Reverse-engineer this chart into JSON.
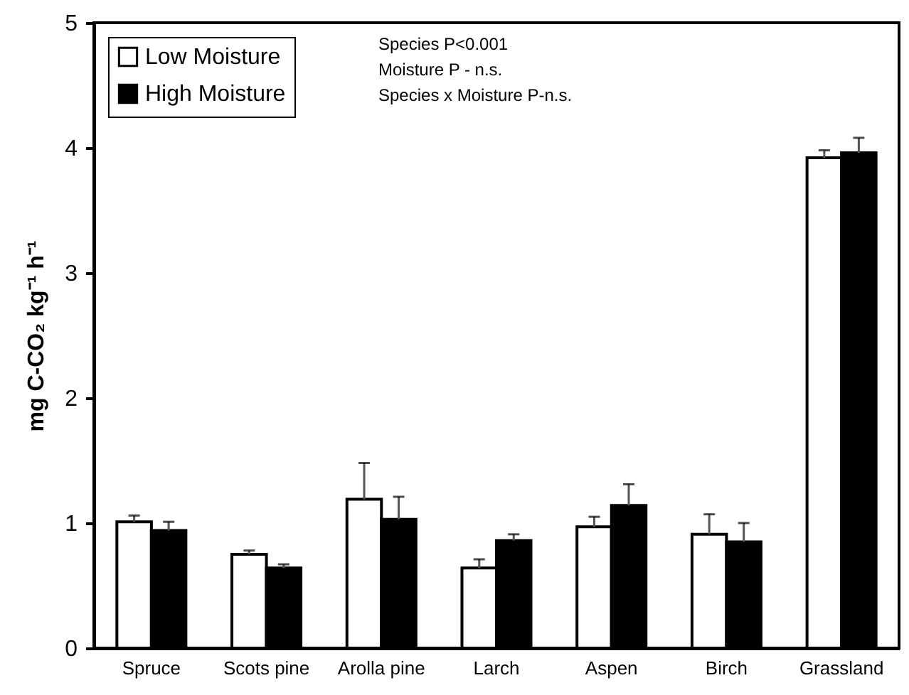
{
  "chart_data": {
    "type": "bar",
    "ylabel": "mg C-CO₂ kg⁻¹ h⁻¹",
    "categories": [
      "Spruce",
      "Scots pine",
      "Arolla pine",
      "Larch",
      "Aspen",
      "Birch",
      "Grassland"
    ],
    "series": [
      {
        "name": "Low Moisture",
        "color": "#ffffff",
        "values": [
          1.01,
          0.75,
          1.19,
          0.64,
          0.97,
          0.91,
          3.92
        ],
        "errors": [
          [
            1.01,
            1.06
          ],
          [
            0.75,
            0.78
          ],
          [
            1.19,
            1.48
          ],
          [
            0.64,
            0.71
          ],
          [
            0.97,
            1.05
          ],
          [
            0.91,
            1.07
          ],
          [
            3.92,
            3.98
          ]
        ]
      },
      {
        "name": "High Moisture",
        "color": "#000000",
        "values": [
          0.94,
          0.64,
          1.03,
          0.86,
          1.14,
          0.85,
          3.96
        ],
        "errors": [
          [
            0.94,
            1.01
          ],
          [
            0.64,
            0.67
          ],
          [
            1.03,
            1.21
          ],
          [
            0.86,
            0.91
          ],
          [
            1.14,
            1.31
          ],
          [
            0.85,
            1.0
          ],
          [
            3.96,
            4.08
          ]
        ]
      }
    ],
    "annotations": [
      "Species P<0.001",
      "Moisture P - n.s.",
      "Species x Moisture P-n.s."
    ],
    "ylim": [
      0,
      5
    ],
    "yticks": [
      0,
      1,
      2,
      3,
      4,
      5
    ],
    "grid": false,
    "legend": "top left"
  }
}
